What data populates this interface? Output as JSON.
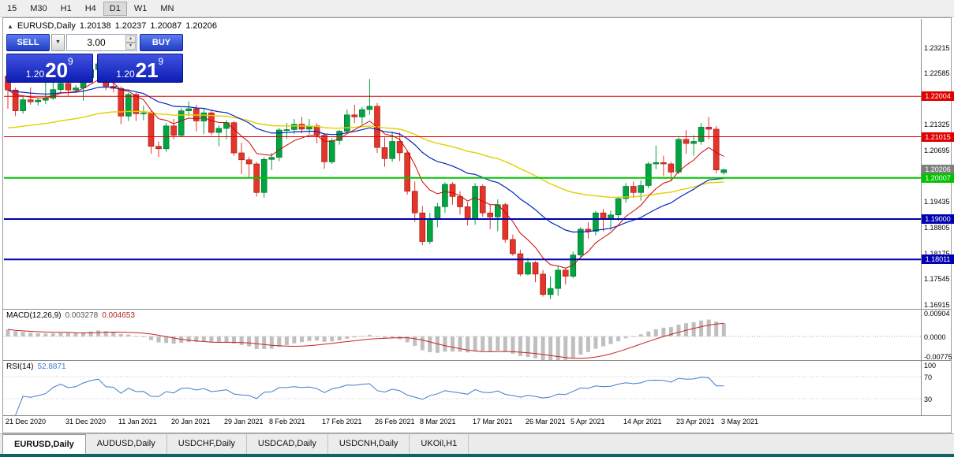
{
  "toolbar": {
    "timeframes": [
      {
        "label": "15",
        "active": false
      },
      {
        "label": "M30",
        "active": false
      },
      {
        "label": "H1",
        "active": false
      },
      {
        "label": "H4",
        "active": false
      },
      {
        "label": "D1",
        "active": true
      },
      {
        "label": "W1",
        "active": false
      },
      {
        "label": "MN",
        "active": false
      }
    ]
  },
  "header": {
    "symbol": "EURUSD,Daily",
    "open": "1.20138",
    "high": "1.20237",
    "low": "1.20087",
    "close": "1.20206",
    "collapse_icon": "▲"
  },
  "trade_panel": {
    "sell_label": "SELL",
    "buy_label": "BUY",
    "volume": "3.00",
    "dropdown_icon": "▼",
    "spin_up_icon": "▲",
    "spin_down_icon": "▼",
    "sell_price": {
      "prefix": "1.20",
      "big": "20",
      "sup": "9"
    },
    "buy_price": {
      "prefix": "1.20",
      "big": "21",
      "sup": "9"
    }
  },
  "price_axis": {
    "plain_labels": [
      "1.23215",
      "1.22585",
      "1.21325",
      "1.20695",
      "1.19435",
      "1.18805",
      "1.18175",
      "1.17545",
      "1.16915"
    ],
    "badges": [
      {
        "text": "1.22004",
        "price": 1.22004,
        "bg": "#e00000",
        "fg": "#ffffff"
      },
      {
        "text": "1.21015",
        "price": 1.21015,
        "bg": "#e00000",
        "fg": "#ffffff"
      },
      {
        "text": "1.20206",
        "price": 1.20206,
        "bg": "#7f7f7f",
        "fg": "#ffffff"
      },
      {
        "text": "1.20007",
        "price": 1.20007,
        "bg": "#00c400",
        "fg": "#ffffff"
      },
      {
        "text": "1.19000",
        "price": 1.19,
        "bg": "#0000b0",
        "fg": "#ffffff"
      },
      {
        "text": "1.18011",
        "price": 1.18011,
        "bg": "#0000b0",
        "fg": "#ffffff"
      }
    ]
  },
  "indicators": {
    "macd": {
      "label": "MACD(12,26,9)",
      "value_main": "0.003278",
      "value_signal": "0.004653",
      "axis": [
        {
          "text": "0.00904",
          "value": 0.00904
        },
        {
          "text": "0.0000",
          "value": 0
        },
        {
          "text": "-0.00775",
          "value": -0.00775
        }
      ],
      "scale": [
        0.00904,
        -0.00775
      ]
    },
    "rsi": {
      "label": "RSI(14)",
      "value": "52.8871",
      "axis": [
        {
          "text": "100",
          "value": 100
        },
        {
          "text": "70",
          "value": 70
        },
        {
          "text": "30",
          "value": 30
        }
      ],
      "levels": [
        70,
        30
      ]
    }
  },
  "date_axis": [
    {
      "label": "21 Dec 2020",
      "index": 0
    },
    {
      "label": "31 Dec 2020",
      "index": 8
    },
    {
      "label": "11 Jan 2021",
      "index": 15
    },
    {
      "label": "20 Jan 2021",
      "index": 22
    },
    {
      "label": "29 Jan 2021",
      "index": 29
    },
    {
      "label": "8 Feb 2021",
      "index": 35
    },
    {
      "label": "17 Feb 2021",
      "index": 42
    },
    {
      "label": "26 Feb 2021",
      "index": 49
    },
    {
      "label": "8 Mar 2021",
      "index": 55
    },
    {
      "label": "17 Mar 2021",
      "index": 62
    },
    {
      "label": "26 Mar 2021",
      "index": 69
    },
    {
      "label": "5 Apr 2021",
      "index": 75
    },
    {
      "label": "14 Apr 2021",
      "index": 82
    },
    {
      "label": "23 Apr 2021",
      "index": 89
    },
    {
      "label": "3 May 2021",
      "index": 95
    }
  ],
  "tabs": [
    {
      "label": "EURUSD,Daily",
      "active": true
    },
    {
      "label": "AUDUSD,Daily",
      "active": false
    },
    {
      "label": "USDCHF,Daily",
      "active": false
    },
    {
      "label": "USDCAD,Daily",
      "active": false
    },
    {
      "label": "USDCNH,Daily",
      "active": false
    },
    {
      "label": "UKOil,H1",
      "active": false
    }
  ],
  "colors": {
    "candle_up": "#00a440",
    "candle_down": "#e5352a",
    "candle_up_border": "#006b2a",
    "candle_down_border": "#8f150c",
    "macd_hist": "#bfbfbf",
    "macd_signal": "#c62222",
    "rsi_line": "#3d7ec8",
    "level_red": "#e00000",
    "level_green": "#00c400",
    "level_blue": "#0000b0",
    "button_blue": "#2240d0",
    "price_box_blue": "#1322c0",
    "status_strip": "#0d6565"
  },
  "chart_data": {
    "type": "candlestick",
    "symbol": "EURUSD",
    "timeframe": "Daily",
    "x_range_dates": [
      "21 Dec 2020",
      "3 May 2021"
    ],
    "y_range": [
      1.168,
      1.239
    ],
    "horizontal_lines": [
      {
        "price": 1.22004,
        "color": "#e00000",
        "width": 1
      },
      {
        "price": 1.21015,
        "color": "#e00000",
        "width": 1
      },
      {
        "price": 1.20007,
        "color": "#00c400",
        "width": 2
      },
      {
        "price": 1.19,
        "color": "#0000b0",
        "width": 2
      },
      {
        "price": 1.18011,
        "color": "#0000b0",
        "width": 2
      }
    ],
    "moving_averages": [
      {
        "type": "ema",
        "period": 55,
        "seed": 1.212,
        "color": "#e3cf00",
        "width": 1.4
      },
      {
        "type": "ema",
        "period": 24,
        "color": "#0026be",
        "width": 1.2
      },
      {
        "type": "ema",
        "period": 8,
        "color": "#d40000",
        "width": 1
      }
    ],
    "candles": [
      [
        1.225,
        1.2258,
        1.217,
        1.2216
      ],
      [
        1.2216,
        1.2222,
        1.2152,
        1.2165
      ],
      [
        1.2165,
        1.2202,
        1.2158,
        1.2192
      ],
      [
        1.2192,
        1.2222,
        1.218,
        1.2187
      ],
      [
        1.2187,
        1.2196,
        1.2178,
        1.2191
      ],
      [
        1.2191,
        1.2238,
        1.2181,
        1.2196
      ],
      [
        1.2196,
        1.2262,
        1.2192,
        1.2217
      ],
      [
        1.2217,
        1.2262,
        1.2208,
        1.2232
      ],
      [
        1.2232,
        1.2248,
        1.2202,
        1.2216
      ],
      [
        1.2216,
        1.2228,
        1.221,
        1.2221
      ],
      [
        1.2221,
        1.2258,
        1.219,
        1.2246
      ],
      [
        1.2246,
        1.2276,
        1.2236,
        1.2266
      ],
      [
        1.2266,
        1.229,
        1.2252,
        1.228
      ],
      [
        1.228,
        1.2285,
        1.2215,
        1.2225
      ],
      [
        1.2225,
        1.225,
        1.221,
        1.222
      ],
      [
        1.222,
        1.2225,
        1.2132,
        1.2152
      ],
      [
        1.2152,
        1.221,
        1.214,
        1.2205
      ],
      [
        1.2205,
        1.221,
        1.214,
        1.2158
      ],
      [
        1.2158,
        1.2178,
        1.2142,
        1.216
      ],
      [
        1.216,
        1.2165,
        1.206,
        1.2078
      ],
      [
        1.2078,
        1.209,
        1.2052,
        1.2072
      ],
      [
        1.2072,
        1.2135,
        1.2065,
        1.2128
      ],
      [
        1.2128,
        1.2145,
        1.2095,
        1.2105
      ],
      [
        1.2105,
        1.2172,
        1.21,
        1.2165
      ],
      [
        1.2165,
        1.2188,
        1.2152,
        1.217
      ],
      [
        1.217,
        1.218,
        1.2115,
        1.214
      ],
      [
        1.214,
        1.217,
        1.2108,
        1.216
      ],
      [
        1.216,
        1.2165,
        1.2105,
        1.2112
      ],
      [
        1.2112,
        1.213,
        1.2078,
        1.2122
      ],
      [
        1.2122,
        1.2142,
        1.2095,
        1.2136
      ],
      [
        1.2136,
        1.214,
        1.2055,
        1.2062
      ],
      [
        1.2062,
        1.2087,
        1.201,
        1.2045
      ],
      [
        1.2045,
        1.2052,
        1.2003,
        1.2035
      ],
      [
        1.2035,
        1.204,
        1.1955,
        1.1965
      ],
      [
        1.1965,
        1.2052,
        1.1952,
        1.2046
      ],
      [
        1.2046,
        1.2062,
        1.202,
        1.2051
      ],
      [
        1.2051,
        1.2123,
        1.2042,
        1.2118
      ],
      [
        1.2118,
        1.2135,
        1.2096,
        1.2119
      ],
      [
        1.2119,
        1.2145,
        1.2108,
        1.2132
      ],
      [
        1.2132,
        1.215,
        1.211,
        1.212
      ],
      [
        1.212,
        1.2145,
        1.2108,
        1.2128
      ],
      [
        1.2128,
        1.2135,
        1.2085,
        1.2105
      ],
      [
        1.2105,
        1.211,
        1.2023,
        1.204
      ],
      [
        1.204,
        1.2098,
        1.2035,
        1.2092
      ],
      [
        1.2092,
        1.2118,
        1.2082,
        1.2115
      ],
      [
        1.2115,
        1.2168,
        1.211,
        1.2155
      ],
      [
        1.2155,
        1.218,
        1.2135,
        1.215
      ],
      [
        1.215,
        1.2174,
        1.2132,
        1.2168
      ],
      [
        1.2168,
        1.2243,
        1.2155,
        1.2176
      ],
      [
        1.2176,
        1.2184,
        1.2062,
        1.2075
      ],
      [
        1.2075,
        1.21,
        1.2028,
        1.2048
      ],
      [
        1.2048,
        1.2114,
        1.204,
        1.209
      ],
      [
        1.209,
        1.2112,
        1.2042,
        1.2062
      ],
      [
        1.2062,
        1.2068,
        1.196,
        1.1968
      ],
      [
        1.1968,
        1.1992,
        1.1893,
        1.1915
      ],
      [
        1.1915,
        1.1932,
        1.1836,
        1.1845
      ],
      [
        1.1845,
        1.1915,
        1.1838,
        1.19
      ],
      [
        1.19,
        1.194,
        1.188,
        1.193
      ],
      [
        1.193,
        1.199,
        1.1915,
        1.1985
      ],
      [
        1.1985,
        1.199,
        1.1935,
        1.1955
      ],
      [
        1.1955,
        1.1968,
        1.1911,
        1.193
      ],
      [
        1.193,
        1.1942,
        1.1884,
        1.19
      ],
      [
        1.19,
        1.1988,
        1.1886,
        1.198
      ],
      [
        1.198,
        1.1985,
        1.1906,
        1.1915
      ],
      [
        1.1915,
        1.1935,
        1.1875,
        1.1905
      ],
      [
        1.1905,
        1.1948,
        1.187,
        1.1935
      ],
      [
        1.1935,
        1.194,
        1.1842,
        1.185
      ],
      [
        1.185,
        1.1862,
        1.181,
        1.1815
      ],
      [
        1.1815,
        1.1825,
        1.176,
        1.1765
      ],
      [
        1.1765,
        1.1805,
        1.1762,
        1.1793
      ],
      [
        1.1793,
        1.1797,
        1.1745,
        1.1765
      ],
      [
        1.1765,
        1.1775,
        1.171,
        1.1715
      ],
      [
        1.1715,
        1.176,
        1.1704,
        1.173
      ],
      [
        1.173,
        1.1785,
        1.1712,
        1.1775
      ],
      [
        1.1775,
        1.178,
        1.174,
        1.176
      ],
      [
        1.176,
        1.182,
        1.1755,
        1.1812
      ],
      [
        1.1812,
        1.188,
        1.1805,
        1.1875
      ],
      [
        1.1875,
        1.1892,
        1.1852,
        1.187
      ],
      [
        1.187,
        1.192,
        1.186,
        1.1915
      ],
      [
        1.1915,
        1.1925,
        1.187,
        1.19
      ],
      [
        1.19,
        1.192,
        1.1872,
        1.191
      ],
      [
        1.191,
        1.1955,
        1.1895,
        1.195
      ],
      [
        1.195,
        1.1988,
        1.194,
        1.198
      ],
      [
        1.198,
        1.1992,
        1.1952,
        1.1965
      ],
      [
        1.1965,
        1.1995,
        1.1945,
        1.1982
      ],
      [
        1.1982,
        1.204,
        1.1975,
        1.2035
      ],
      [
        1.2035,
        1.208,
        1.2022,
        1.2038
      ],
      [
        1.2038,
        1.2055,
        1.2005,
        1.2035
      ],
      [
        1.2035,
        1.204,
        1.1995,
        1.2015
      ],
      [
        1.2015,
        1.21,
        1.201,
        1.2095
      ],
      [
        1.2095,
        1.2118,
        1.206,
        1.2085
      ],
      [
        1.2085,
        1.2105,
        1.2055,
        1.209
      ],
      [
        1.209,
        1.2135,
        1.2082,
        1.2125
      ],
      [
        1.2125,
        1.215,
        1.2095,
        1.212
      ],
      [
        1.212,
        1.2128,
        1.2012,
        1.202
      ],
      [
        1.20138,
        1.20237,
        1.20087,
        1.20206
      ]
    ]
  }
}
